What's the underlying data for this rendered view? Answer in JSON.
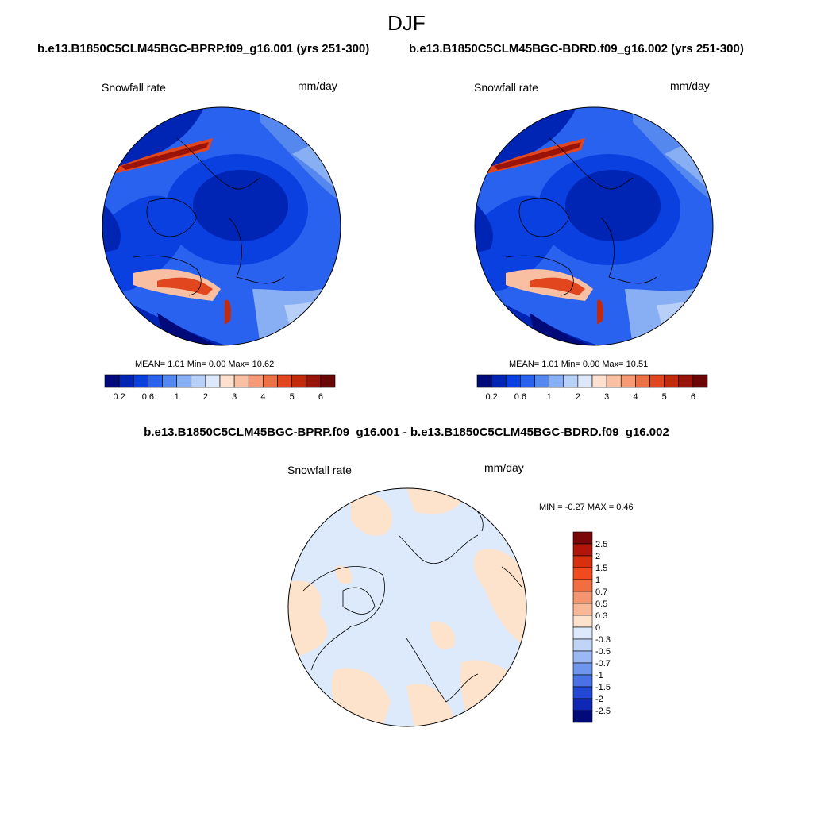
{
  "season": "DJF",
  "panels": [
    {
      "case": "b.e13.B1850C5CLM45BGC-BPRP.f09_g16.001 (yrs 251-300)",
      "variable": "Snowfall rate",
      "units": "mm/day",
      "stats": "MEAN=   1.01  Min=   0.00  Max=  10.62"
    },
    {
      "case": "b.e13.B1850C5CLM45BGC-BDRD.f09_g16.002 (yrs 251-300)",
      "variable": "Snowfall rate",
      "units": "mm/day",
      "stats": "MEAN=   1.01  Min=   0.00  Max=  10.51"
    }
  ],
  "difference": {
    "title": "b.e13.B1850C5CLM45BGC-BPRP.f09_g16.001 - b.e13.B1850C5CLM45BGC-BDRD.f09_g16.002",
    "variable": "Snowfall rate",
    "units": "mm/day",
    "stats": "MIN =  -0.27 MAX =   0.46"
  },
  "chart_data": [
    {
      "type": "heatmap",
      "title": "Snowfall rate",
      "units": "mm/day",
      "projection": "north polar stereographic",
      "colorbar_orientation": "horizontal",
      "levels": [
        "0.2",
        "0.6",
        "1",
        "2",
        "3",
        "4",
        "5",
        "6"
      ],
      "colors": [
        "#000a78",
        "#0024b4",
        "#0a3fe0",
        "#2a62f0",
        "#5588ee",
        "#88aef4",
        "#b8d0f8",
        "#dde9fb",
        "#fde0ce",
        "#f8bfa2",
        "#f49a76",
        "#ee7045",
        "#e2461e",
        "#c32a0b",
        "#98130a",
        "#6a0706"
      ]
    },
    {
      "type": "heatmap",
      "title": "Snowfall rate",
      "units": "mm/day",
      "projection": "north polar stereographic",
      "colorbar_orientation": "horizontal",
      "levels": [
        "0.2",
        "0.6",
        "1",
        "2",
        "3",
        "4",
        "5",
        "6"
      ],
      "colors": [
        "#000a78",
        "#0024b4",
        "#0a3fe0",
        "#2a62f0",
        "#5588ee",
        "#88aef4",
        "#b8d0f8",
        "#dde9fb",
        "#fde0ce",
        "#f8bfa2",
        "#f49a76",
        "#ee7045",
        "#e2461e",
        "#c32a0b",
        "#98130a",
        "#6a0706"
      ]
    },
    {
      "type": "heatmap",
      "title": "Snowfall rate (difference)",
      "units": "mm/day",
      "projection": "north polar stereographic",
      "colorbar_orientation": "vertical",
      "levels": [
        "2.5",
        "2",
        "1.5",
        "1",
        "0.7",
        "0.5",
        "0.3",
        "0",
        "-0.3",
        "-0.5",
        "-0.7",
        "-1",
        "-1.5",
        "-2",
        "-2.5"
      ],
      "colors": [
        "#7a0808",
        "#b2150a",
        "#d8300e",
        "#f04a1e",
        "#f06e40",
        "#f49470",
        "#f8b898",
        "#fde2cc",
        "#ddeafc",
        "#c0d4f8",
        "#9ab8f4",
        "#6f96ee",
        "#4a72e6",
        "#2348d6",
        "#0e28b4",
        "#000a78"
      ]
    }
  ]
}
